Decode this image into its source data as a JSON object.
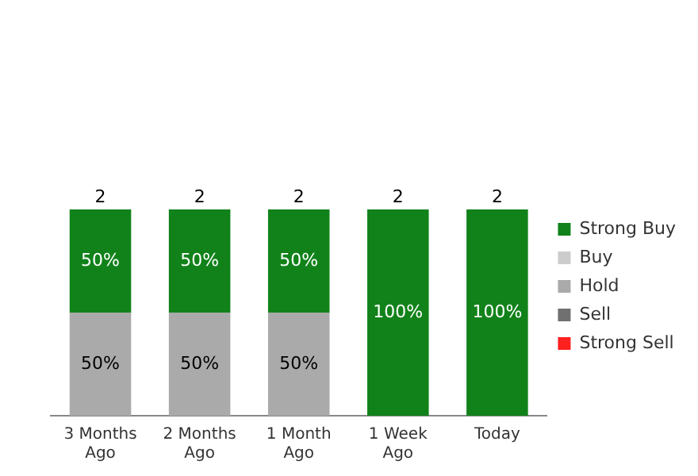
{
  "chart_data": {
    "type": "bar",
    "stacked": true,
    "categories": [
      "3 Months Ago",
      "2 Months Ago",
      "1 Month Ago",
      "1 Week Ago",
      "Today"
    ],
    "series": [
      {
        "name": "Strong Sell",
        "color": "#ff2020",
        "values": [
          null,
          null,
          null,
          null,
          null
        ]
      },
      {
        "name": "Sell",
        "color": "#707070",
        "values": [
          null,
          null,
          null,
          null,
          null
        ]
      },
      {
        "name": "Hold",
        "color": "#aaaaaa",
        "values": [
          50,
          50,
          50,
          null,
          null
        ],
        "value_labels": [
          "50%",
          "50%",
          "50%",
          null,
          null
        ]
      },
      {
        "name": "Buy",
        "color": "#cccccc",
        "values": [
          null,
          null,
          null,
          null,
          null
        ]
      },
      {
        "name": "Strong Buy",
        "color": "#11821a",
        "values": [
          50,
          50,
          50,
          100,
          100
        ],
        "value_labels": [
          "50%",
          "50%",
          "50%",
          "100%",
          "100%"
        ]
      }
    ],
    "annotations": [
      {
        "text": "2",
        "x": "3 Months Ago",
        "y": 100
      },
      {
        "text": "2",
        "x": "2 Months Ago",
        "y": 100
      },
      {
        "text": "2",
        "x": "1 Month Ago",
        "y": 100
      },
      {
        "text": "2",
        "x": "1 Week Ago",
        "y": 100
      },
      {
        "text": "2",
        "x": "Today",
        "y": 100
      }
    ],
    "legend": "right",
    "grid": false,
    "tick_labels": "x"
  }
}
